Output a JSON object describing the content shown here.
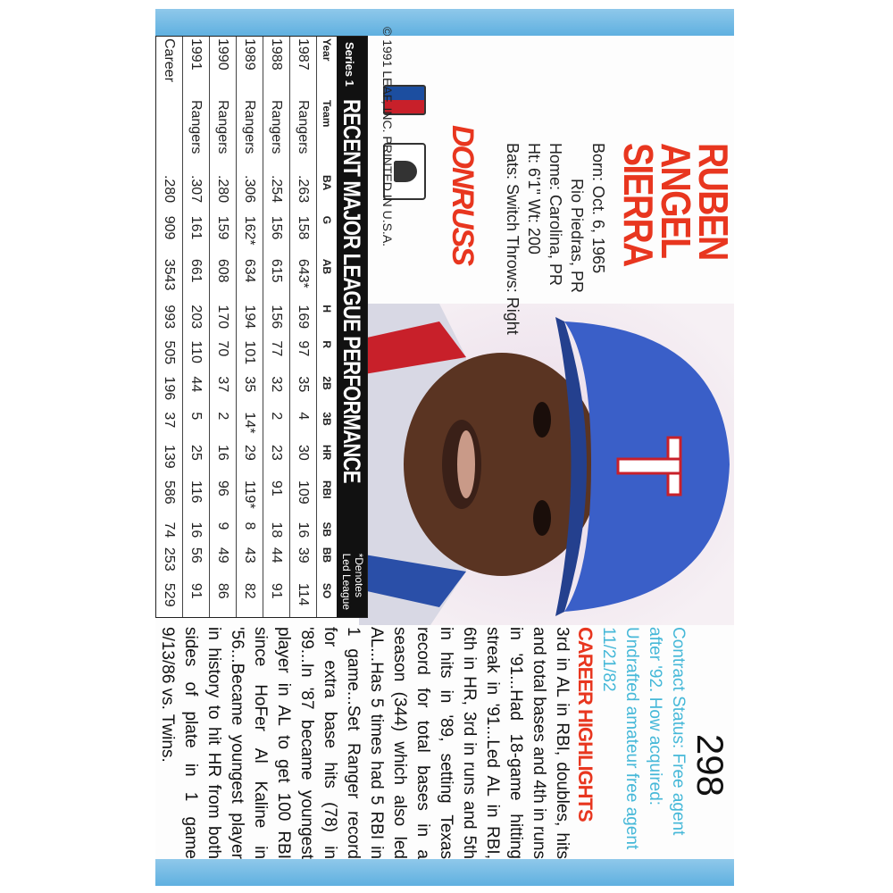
{
  "card": {
    "number": "298",
    "copyright": "© 1991 LEAF, INC. PRINTED IN U.S.A.",
    "brand": "DONRUSS",
    "name_lines": [
      "RUBEN",
      "ANGEL",
      "SIERRA"
    ],
    "bio": {
      "born": "Born: Oct. 6, 1965",
      "born_place": "Rio Piedras, PR",
      "home": "Home: Carolina, PR",
      "ht_wt": "Ht: 6'1\"  Wt: 200",
      "bats_throws": "Bats: Switch  Throws: Right"
    },
    "stats": {
      "series": "Series 1",
      "title": "RECENT MAJOR LEAGUE PERFORMANCE",
      "note": [
        "*Denotes",
        "Led League"
      ],
      "columns": [
        "Year",
        "Team",
        "BA",
        "G",
        "AB",
        "H",
        "R",
        "2B",
        "3B",
        "HR",
        "RBI",
        "SB",
        "BB",
        "SO"
      ],
      "rows": [
        [
          "1987",
          "Rangers",
          ".263",
          "158",
          "643*",
          "169",
          "97",
          "35",
          "4",
          "30",
          "109",
          "16",
          "39",
          "114"
        ],
        [
          "1988",
          "Rangers",
          ".254",
          "156",
          "615",
          "156",
          "77",
          "32",
          "2",
          "23",
          "91",
          "18",
          "44",
          "91"
        ],
        [
          "1989",
          "Rangers",
          ".306",
          "162*",
          "634",
          "194",
          "101",
          "35",
          "14*",
          "29",
          "119*",
          "8",
          "43",
          "82"
        ],
        [
          "1990",
          "Rangers",
          ".280",
          "159",
          "608",
          "170",
          "70",
          "37",
          "2",
          "16",
          "96",
          "9",
          "49",
          "86"
        ],
        [
          "1991",
          "Rangers",
          ".307",
          "161",
          "661",
          "203",
          "110",
          "44",
          "5",
          "25",
          "116",
          "16",
          "56",
          "91"
        ],
        [
          "Career",
          "",
          ".280",
          "909",
          "3543",
          "993",
          "505",
          "196",
          "37",
          "139",
          "586",
          "74",
          "253",
          "529"
        ]
      ]
    },
    "contract": "Contract Status: Free agent after '92. How acquired: Undrafted amateur free agent 11/21/82",
    "highlights_title": "CAREER HIGHLIGHTS",
    "highlights": "3rd in AL in RBI, doubles, hits and total bases and 4th in runs in '91...Had 18-game hitting streak in '91...Led AL in RBI, 6th in HR, 3rd in runs and 5th in hits in '89, setting Texas record for total bases in a season (344) which also led AL...Has 5 times had 5 RBI in 1 game...Set Ranger record for extra base hits (78) in '89...In '87 became youngest player in AL to get 100 RBI since HoFer Al Kaline in '56...Became youngest player in history to hit HR from both sides of plate in 1 game 9/13/86 vs. Twins.",
    "colors": {
      "name_red": "#e8361f",
      "contract_cyan": "#45b8d8",
      "strip_blue": "#6fb8e4",
      "helmet_blue": "#3a5fc8"
    }
  }
}
